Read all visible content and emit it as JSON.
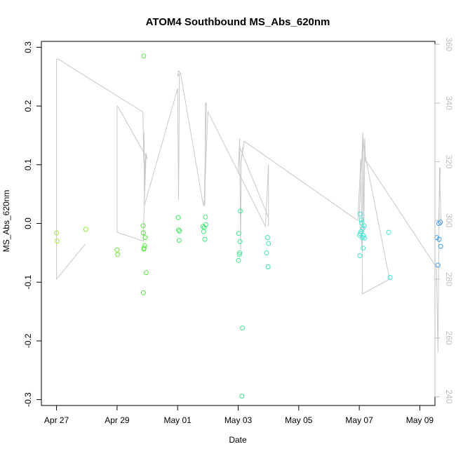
{
  "chart_data": {
    "type": "scatter",
    "title": "ATOM4 Southbound MS_Abs_620nm",
    "xlabel": "Date",
    "ylabel": "MS_Abs_620nm",
    "x_unit": "days since Apr 27",
    "xlim": [
      -0.5,
      12.5
    ],
    "ylim": [
      -0.31,
      0.31
    ],
    "yticks": [
      -0.3,
      -0.2,
      -0.1,
      0.0,
      0.1,
      0.2,
      0.3
    ],
    "ytick_labels": [
      "-0.3",
      "-0.2",
      "-0.1",
      "0.0",
      "0.1",
      "0.2",
      "0.3"
    ],
    "xticks": [
      0,
      2,
      4,
      6,
      8,
      10,
      12
    ],
    "xtick_labels": [
      "Apr 27",
      "Apr 29",
      "May 01",
      "May 03",
      "May 05",
      "May 07",
      "May 09"
    ],
    "secondary_axis": {
      "lim": [
        237,
        361
      ],
      "ticks": [
        240,
        260,
        280,
        300,
        320,
        340,
        360
      ],
      "tick_labels": [
        "240",
        "260",
        "280",
        "300",
        "320",
        "340",
        "360"
      ],
      "color": "#bebebe"
    },
    "grid": false,
    "points": [
      {
        "x": 0.0,
        "y": -0.016,
        "color": "#a8e840"
      },
      {
        "x": 0.02,
        "y": -0.03,
        "color": "#a8e840"
      },
      {
        "x": 0.97,
        "y": -0.01,
        "color": "#8fe838"
      },
      {
        "x": 2.0,
        "y": -0.045,
        "color": "#6fe83a"
      },
      {
        "x": 2.02,
        "y": -0.053,
        "color": "#6fe83a"
      },
      {
        "x": 2.88,
        "y": 0.285,
        "color": "#52e83c"
      },
      {
        "x": 2.86,
        "y": -0.004,
        "color": "#52e83c"
      },
      {
        "x": 2.87,
        "y": -0.016,
        "color": "#52e83c"
      },
      {
        "x": 2.93,
        "y": -0.024,
        "color": "#52e83c"
      },
      {
        "x": 2.91,
        "y": -0.038,
        "color": "#52e83c"
      },
      {
        "x": 2.89,
        "y": -0.042,
        "color": "#52e83c"
      },
      {
        "x": 2.88,
        "y": -0.044,
        "color": "#52e83c"
      },
      {
        "x": 2.96,
        "y": -0.084,
        "color": "#52e83c"
      },
      {
        "x": 2.87,
        "y": -0.118,
        "color": "#52e83c"
      },
      {
        "x": 4.02,
        "y": 0.01,
        "color": "#3ee85a"
      },
      {
        "x": 4.03,
        "y": -0.011,
        "color": "#3ee85a"
      },
      {
        "x": 4.06,
        "y": -0.013,
        "color": "#3ee85a"
      },
      {
        "x": 4.05,
        "y": -0.029,
        "color": "#3ee85a"
      },
      {
        "x": 4.84,
        "y": -0.005,
        "color": "#3ee870"
      },
      {
        "x": 4.88,
        "y": -0.007,
        "color": "#3ee870"
      },
      {
        "x": 4.93,
        "y": -0.002,
        "color": "#3ee870"
      },
      {
        "x": 4.92,
        "y": 0.011,
        "color": "#3ee870"
      },
      {
        "x": 4.86,
        "y": -0.014,
        "color": "#3ee870"
      },
      {
        "x": 4.9,
        "y": -0.027,
        "color": "#3ee870"
      },
      {
        "x": 6.07,
        "y": 0.021,
        "color": "#3ee890"
      },
      {
        "x": 6.02,
        "y": -0.017,
        "color": "#3ee890"
      },
      {
        "x": 6.06,
        "y": -0.031,
        "color": "#3ee890"
      },
      {
        "x": 6.05,
        "y": -0.05,
        "color": "#3ee890"
      },
      {
        "x": 6.04,
        "y": -0.053,
        "color": "#3ee890"
      },
      {
        "x": 6.01,
        "y": -0.063,
        "color": "#3ee890"
      },
      {
        "x": 6.14,
        "y": -0.178,
        "color": "#3ee890"
      },
      {
        "x": 6.12,
        "y": -0.294,
        "color": "#3ee890"
      },
      {
        "x": 6.97,
        "y": -0.024,
        "color": "#3ee8a8"
      },
      {
        "x": 7.0,
        "y": -0.034,
        "color": "#3ee8a8"
      },
      {
        "x": 6.94,
        "y": -0.05,
        "color": "#3ee8a8"
      },
      {
        "x": 6.99,
        "y": -0.074,
        "color": "#3ee8a8"
      },
      {
        "x": 10.03,
        "y": 0.016,
        "color": "#3ee8d8"
      },
      {
        "x": 10.07,
        "y": 0.006,
        "color": "#3ee8d8"
      },
      {
        "x": 10.08,
        "y": 0.001,
        "color": "#3ee8d8"
      },
      {
        "x": 10.16,
        "y": -0.004,
        "color": "#3ee8d8"
      },
      {
        "x": 10.12,
        "y": -0.008,
        "color": "#3ee8d8"
      },
      {
        "x": 10.06,
        "y": -0.014,
        "color": "#3ee8d8"
      },
      {
        "x": 10.04,
        "y": -0.017,
        "color": "#3ee8d8"
      },
      {
        "x": 10.01,
        "y": -0.02,
        "color": "#3ee8d8"
      },
      {
        "x": 10.14,
        "y": -0.021,
        "color": "#3ee8d8"
      },
      {
        "x": 10.1,
        "y": -0.024,
        "color": "#3ee8d8"
      },
      {
        "x": 10.17,
        "y": -0.025,
        "color": "#3ee8d8"
      },
      {
        "x": 10.13,
        "y": -0.042,
        "color": "#3ee8d8"
      },
      {
        "x": 10.02,
        "y": -0.055,
        "color": "#3ee8d8"
      },
      {
        "x": 10.97,
        "y": -0.015,
        "color": "#3ee8e0"
      },
      {
        "x": 11.02,
        "y": -0.092,
        "color": "#3ee8e0"
      },
      {
        "x": 12.63,
        "y": 0.0,
        "color": "#3e9ae8"
      },
      {
        "x": 12.68,
        "y": 0.002,
        "color": "#3e9ae8"
      },
      {
        "x": 12.56,
        "y": -0.024,
        "color": "#3e9ae8"
      },
      {
        "x": 12.64,
        "y": -0.027,
        "color": "#3e9ae8"
      },
      {
        "x": 12.69,
        "y": -0.039,
        "color": "#3e9ae8"
      },
      {
        "x": 12.6,
        "y": -0.071,
        "color": "#3e9ae8"
      }
    ],
    "track_secondary": {
      "color": "#c8c8c8",
      "x": [
        0.95,
        0.0,
        0.0,
        0.05,
        2.85,
        2.86,
        2.88,
        2.89,
        2.9,
        2.92,
        2.96,
        2.88,
        2.87,
        2.0,
        2.0,
        2.02,
        3.0,
        2.95,
        2.9,
        2.9,
        4.0,
        4.03,
        4.06,
        4.0,
        4.03,
        4.1,
        4.85,
        4.88,
        4.95,
        4.92,
        4.9,
        4.88,
        5.0,
        5.05,
        6.9,
        7.0,
        7.0,
        7.0,
        6.05,
        6.0,
        6.05,
        6.08,
        6.1,
        6.15,
        6.1,
        6.2,
        9.95,
        10.05,
        10.1,
        10.0,
        10.12,
        10.15,
        10.18,
        10.2,
        11.0,
        10.1,
        10.12,
        10.2,
        10.25,
        12.55,
        12.6,
        12.65,
        12.7,
        12.62,
        12.68
      ],
      "y": [
        292,
        280,
        355,
        355,
        337,
        335,
        320,
        330,
        310,
        320,
        323,
        300,
        293,
        296,
        339,
        339,
        321,
        323,
        308,
        305,
        345,
        307,
        350,
        349,
        351,
        350,
        305,
        307,
        340,
        340,
        305,
        306,
        337,
        336,
        298,
        319,
        298,
        301,
        325,
        316,
        328,
        290,
        320,
        325,
        320,
        327,
        300,
        321,
        290,
        301,
        330,
        296,
        328,
        322,
        280,
        275,
        329,
        320,
        320,
        284,
        255,
        318,
        300,
        300,
        318
      ]
    }
  }
}
